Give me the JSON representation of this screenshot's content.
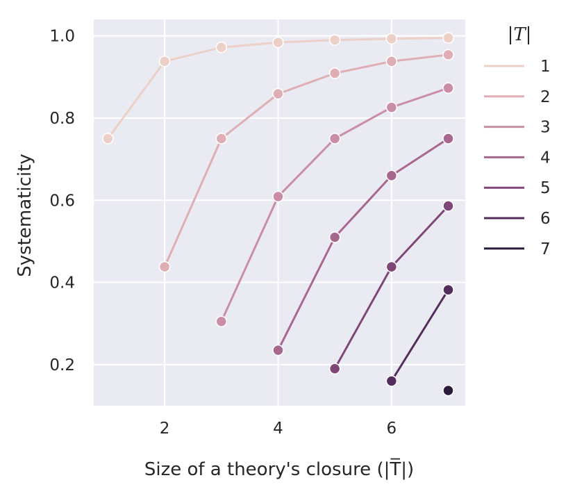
{
  "chart_data": {
    "type": "line",
    "xlabel": "Size of a theory's closure (|T̅|)",
    "ylabel": "Systematicity",
    "xlim": [
      0.75,
      7.3
    ],
    "ylim": [
      0.1,
      1.04
    ],
    "x_ticks": [
      2,
      4,
      6
    ],
    "y_ticks": [
      0.2,
      0.4,
      0.6,
      0.8,
      1.0
    ],
    "x_tick_labels": [
      "2",
      "4",
      "6"
    ],
    "y_tick_labels": [
      "0.2",
      "0.4",
      "0.6",
      "0.8",
      "1.0"
    ],
    "grid": true,
    "legend": {
      "title": "|T|",
      "placement": "outside-right"
    },
    "series": [
      {
        "name": "1",
        "color": "#ecd0c7",
        "x": [
          1,
          2,
          3,
          4,
          5,
          6,
          7
        ],
        "y": [
          0.75,
          0.938,
          0.972,
          0.984,
          0.99,
          0.993,
          0.995
        ]
      },
      {
        "name": "2",
        "color": "#dfaeb5",
        "x": [
          2,
          3,
          4,
          5,
          6,
          7
        ],
        "y": [
          0.438,
          0.75,
          0.859,
          0.909,
          0.938,
          0.954
        ]
      },
      {
        "name": "3",
        "color": "#c98ea6",
        "x": [
          3,
          4,
          5,
          6,
          7
        ],
        "y": [
          0.305,
          0.609,
          0.75,
          0.826,
          0.873
        ]
      },
      {
        "name": "4",
        "color": "#a8678f",
        "x": [
          4,
          5,
          6,
          7
        ],
        "y": [
          0.235,
          0.51,
          0.66,
          0.75
        ]
      },
      {
        "name": "5",
        "color": "#7e4778",
        "x": [
          5,
          6,
          7
        ],
        "y": [
          0.19,
          0.438,
          0.586
        ]
      },
      {
        "name": "6",
        "color": "#532d5c",
        "x": [
          6,
          7
        ],
        "y": [
          0.16,
          0.382
        ]
      },
      {
        "name": "7",
        "color": "#2b1b3b",
        "x": [
          7
        ],
        "y": [
          0.137
        ]
      }
    ]
  }
}
